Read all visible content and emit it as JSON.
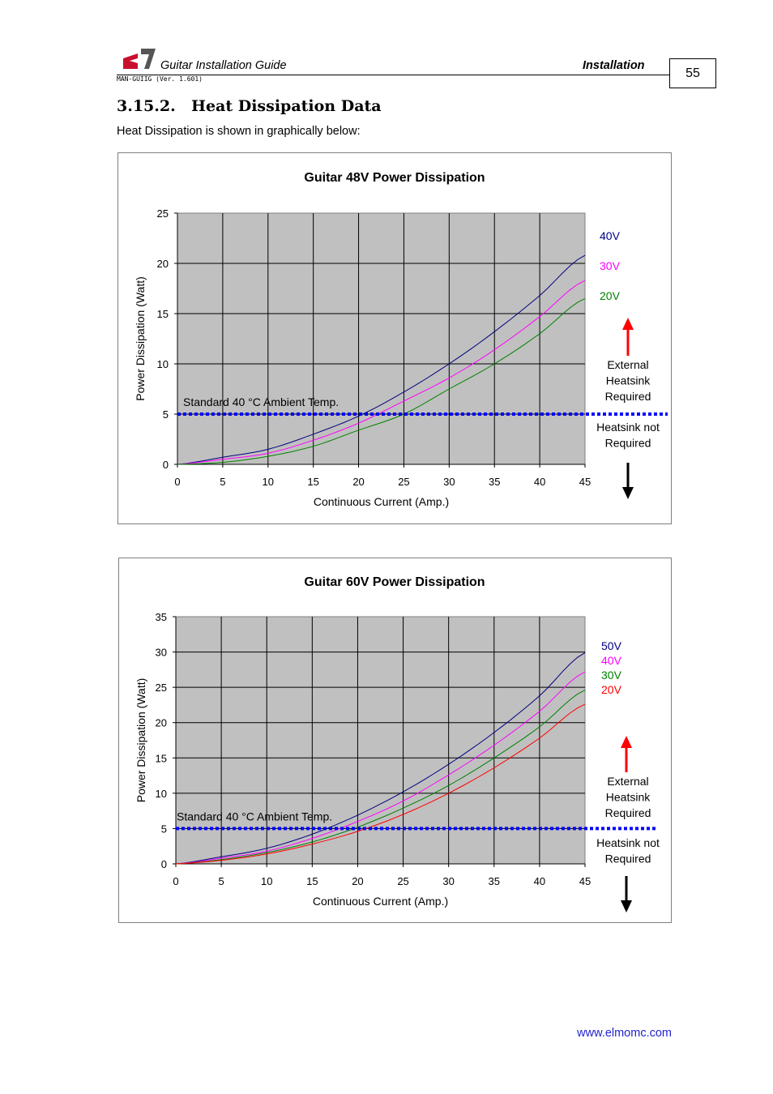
{
  "header": {
    "doc_title": "Guitar Installation Guide",
    "doc_version": "MAN-GUIIG (Ver. 1.601)",
    "section": "Installation",
    "page_number": "55",
    "logo_icon": "elmo-logo-icon"
  },
  "section": {
    "number": "3.15.2.",
    "title": "Heat Dissipation Data",
    "intro": "Heat Dissipation is shown in graphically below:"
  },
  "footer": {
    "url": "www.elmomc.com"
  },
  "colors": {
    "plot_bg": "#c0c0c0",
    "threshold": "#0000ff",
    "up_arrow": "#ff0000",
    "down_arrow": "#000000"
  },
  "chart_data": [
    {
      "type": "line",
      "title": "Guitar 48V Power Dissipation",
      "xlabel": "Continuous Current (Amp.)",
      "ylabel": "Power Dissipation (Watt)",
      "xlim": [
        0,
        45
      ],
      "ylim": [
        0,
        25
      ],
      "xticks": [
        "0",
        "5",
        "10",
        "15",
        "20",
        "25",
        "30",
        "35",
        "40",
        "45"
      ],
      "yticks": [
        "0",
        "5",
        "10",
        "15",
        "20",
        "25"
      ],
      "grid": true,
      "x": [
        0,
        5,
        10,
        15,
        20,
        25,
        30,
        35,
        40,
        45
      ],
      "series": [
        {
          "name": "40V",
          "color": "#000080",
          "values": [
            0,
            0.7,
            1.5,
            3.0,
            4.8,
            7.2,
            10.0,
            13.2,
            16.8,
            20.8
          ]
        },
        {
          "name": "30V",
          "color": "#ff00ff",
          "values": [
            0,
            0.5,
            1.1,
            2.4,
            4.1,
            6.3,
            8.6,
            11.4,
            14.7,
            18.3
          ]
        },
        {
          "name": "20V",
          "color": "#008000",
          "values": [
            0,
            0.2,
            0.8,
            1.8,
            3.4,
            5.0,
            7.5,
            10.0,
            13.0,
            16.5
          ]
        }
      ],
      "threshold": {
        "value": 5,
        "label": "Standard 40 °C Ambient Temp."
      },
      "side_labels": {
        "above": "External\nHeatsink\nRequired",
        "below": "Heatsink not\nRequired"
      },
      "legend_position": "right"
    },
    {
      "type": "line",
      "title": "Guitar 60V Power Dissipation",
      "xlabel": "Continuous Current (Amp.)",
      "ylabel": "Power Dissipation (Watt)",
      "xlim": [
        0,
        45
      ],
      "ylim": [
        0,
        35
      ],
      "xticks": [
        "0",
        "5",
        "10",
        "15",
        "20",
        "25",
        "30",
        "35",
        "40",
        "45"
      ],
      "yticks": [
        "0",
        "5",
        "10",
        "15",
        "20",
        "25",
        "30",
        "35"
      ],
      "grid": true,
      "x": [
        0,
        5,
        10,
        15,
        20,
        25,
        30,
        35,
        40,
        45
      ],
      "series": [
        {
          "name": "50V",
          "color": "#000080",
          "values": [
            0,
            1.0,
            2.2,
            4.2,
            6.9,
            10.2,
            14.1,
            18.6,
            23.8,
            29.9
          ]
        },
        {
          "name": "40V",
          "color": "#ff00ff",
          "values": [
            0,
            0.8,
            1.8,
            3.6,
            6.0,
            8.9,
            12.6,
            16.8,
            21.6,
            27.2
          ]
        },
        {
          "name": "30V",
          "color": "#008000",
          "values": [
            0,
            0.6,
            1.6,
            3.1,
            5.2,
            7.9,
            11.1,
            15.0,
            19.4,
            24.6
          ]
        },
        {
          "name": "20V",
          "color": "#ff0000",
          "values": [
            0,
            0.5,
            1.4,
            2.8,
            4.6,
            7.0,
            10.0,
            13.6,
            17.8,
            22.6
          ]
        }
      ],
      "threshold": {
        "value": 5,
        "label": "Standard 40 °C Ambient Temp."
      },
      "side_labels": {
        "above": "External\nHeatsink\nRequired",
        "below": "Heatsink not\nRequired"
      },
      "legend_position": "right"
    }
  ]
}
